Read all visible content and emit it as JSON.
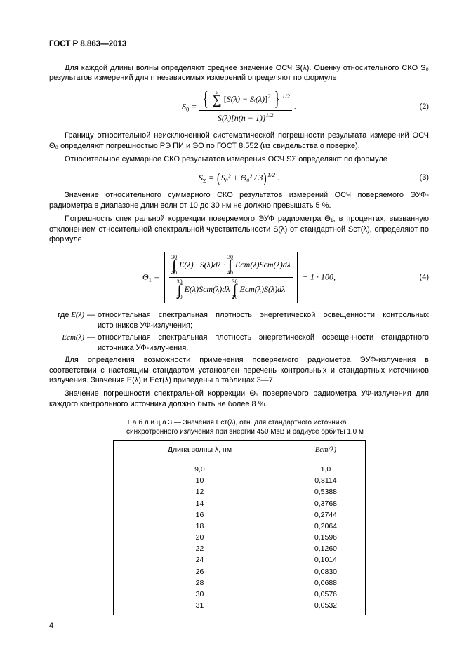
{
  "header": "ГОСТ Р 8.863—2013",
  "p1": "Для каждой длины волны определяют среднее значение ОСЧ S(λ). Оценку относительного СКО S₀ результатов измерений для n независимых измерений определяют по формуле",
  "eq2": {
    "left": "S",
    "sub0": "0",
    "num_top": "5",
    "num_bot": "i=1",
    "inside": "S(λ) − Sᵢ(λ)",
    "pow_inside": "2",
    "pow_outer": "1/2",
    "den": "S(λ)[n(n − 1)]",
    "den_pow": "1/2",
    "num": "(2)"
  },
  "p2": "Границу относительной неисключенной систематической погрешности результата измерений ОСЧ Θ₀ определяют погрешностью РЭ ПИ и ЭО по ГОСТ 8.552 (из свидельства о поверке).",
  "p3": "Относительное суммарное СКО результатов измерения ОСЧ SΣ определяют по формуле",
  "eq3": {
    "left": "S",
    "subS": "Σ",
    "body": "S₀² + Θ₀² / 3",
    "pow": "1/2",
    "num": "(3)"
  },
  "p4": "Значение относительного суммарного СКО результатов измерений ОСЧ поверяемого ЭУФ-радиометра в диапазоне длин волн от 10 до 30 нм не должно превышать 5 %.",
  "p5": "Погрешность спектральной коррекции поверяемого ЭУФ радиометра Θ₁, в процентах, вызванную отклонением относительной спектральной чувствительности S(λ) от стандартной Sст(λ), определяют по формуле",
  "eq4": {
    "left": "Θ",
    "sub1": "1",
    "a": "30",
    "b": "10",
    "f1": "E(λ) · S(λ)dλ",
    "f2": "Eст(λ)Sст(λ)dλ",
    "f3": "E(λ)Sст(λ)dλ",
    "f4": "Eст(λ)S(λ)dλ",
    "tail": " − 1 · 100,",
    "num": "(4)"
  },
  "where_gde": "где",
  "w1_l": "E(λ)",
  "w1_t": "относительная спектральная плотность энергетической освещенности контрольных источников УФ-излучения;",
  "w2_l": "Eст(λ)",
  "w2_t": "относительная спектральная плотность энергетической освещенности стандартного источника УФ-излучения.",
  "p6": "Для определения возможности применения поверяемого радиометра ЭУФ-излучения в соответствии с настоящим стандартом установлен перечень контрольных и стандартных источников излучения. Значения E(λ) и Eст(λ) приведены в таблицах 3—7.",
  "p7": "Значение погрешности спектральной коррекции Θ₁ поверяемого радиометра УФ-излучения для каждого контрольного источника должно быть не более 8 %.",
  "tcap": "Т а б л и ц а   3 — Значения Eст(λ), отн. для стандартного источника синхротронного излучения при энергии 450 МэВ и радиусе орбиты 1,0 м",
  "th1": "Длина волны λ, нм",
  "th2": "Eст(λ)",
  "rows": [
    [
      "9,0",
      "1,0"
    ],
    [
      "10",
      "0,8114"
    ],
    [
      "12",
      "0,5388"
    ],
    [
      "14",
      "0,3768"
    ],
    [
      "16",
      "0,2744"
    ],
    [
      "18",
      "0,2064"
    ],
    [
      "20",
      "0,1596"
    ],
    [
      "22",
      "0,1260"
    ],
    [
      "24",
      "0,1014"
    ],
    [
      "26",
      "0,0830"
    ],
    [
      "28",
      "0,0688"
    ],
    [
      "30",
      "0,0576"
    ],
    [
      "31",
      "0,0532"
    ]
  ],
  "pgnum": "4"
}
